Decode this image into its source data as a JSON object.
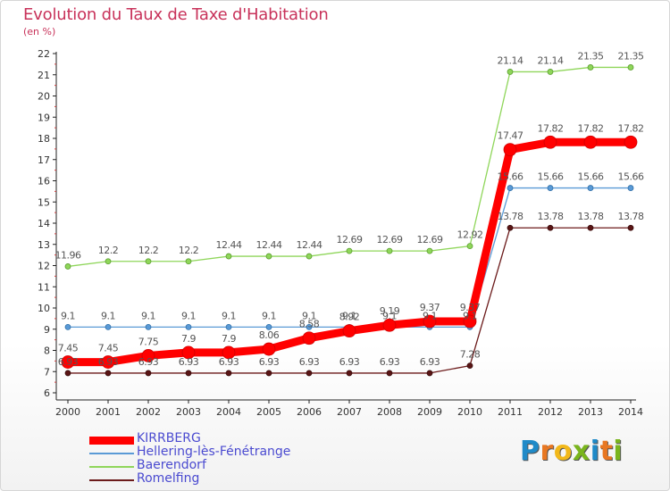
{
  "header": {
    "title": "Evolution du Taux de Taxe d'Habitation",
    "subtitle": "(en %)"
  },
  "logo": {
    "text": "Proxiti",
    "letters": [
      "P",
      "r",
      "o",
      "x",
      "i",
      "t",
      "i"
    ],
    "colors": [
      "#1f8ac8",
      "#e87722",
      "#f2b81a",
      "#7ab51d",
      "#1f8ac8",
      "#e87722",
      "#7ab51d"
    ]
  },
  "chart_data": {
    "type": "line",
    "title": "Evolution du Taux de Taxe d'Habitation",
    "subtitle": "(en %)",
    "categories": [
      "2000",
      "2001",
      "2002",
      "2003",
      "2004",
      "2005",
      "2006",
      "2007",
      "2008",
      "2009",
      "2010",
      "2011",
      "2012",
      "2013",
      "2014"
    ],
    "ylim": [
      6,
      22
    ],
    "yticks": [
      "6",
      "7",
      "8",
      "9",
      "10",
      "11",
      "12",
      "13",
      "14",
      "15",
      "16",
      "17",
      "18",
      "19",
      "20",
      "21",
      "22"
    ],
    "grid": false,
    "legend_position": "bottom-left",
    "series": [
      {
        "name": "Romelfing",
        "color": "#6b1a1a",
        "values": [
          6.93,
          6.93,
          6.93,
          6.93,
          6.93,
          6.93,
          6.93,
          6.93,
          6.93,
          6.93,
          7.28,
          13.78,
          13.78,
          13.78,
          13.78
        ],
        "labels": [
          "6.93",
          "6.93",
          "6.93",
          "6.93",
          "6.93",
          "6.93",
          "6.93",
          "6.93",
          "6.93",
          "6.93",
          "7.28",
          "13.78",
          "13.78",
          "13.78",
          "13.78"
        ]
      },
      {
        "name": "Baerendorf",
        "color": "#8fd65a",
        "values": [
          11.96,
          12.2,
          12.2,
          12.2,
          12.44,
          12.44,
          12.44,
          12.69,
          12.69,
          12.69,
          12.92,
          21.14,
          21.14,
          21.35,
          21.35
        ],
        "labels": [
          "11.96",
          "12.2",
          "12.2",
          "12.2",
          "12.44",
          "12.44",
          "12.44",
          "12.69",
          "12.69",
          "12.69",
          "12.92",
          "21.14",
          "21.14",
          "21.35",
          "21.35"
        ]
      },
      {
        "name": "Hellering-lès-Fénétrange",
        "color": "#5a9ad6",
        "values": [
          9.1,
          9.1,
          9.1,
          9.1,
          9.1,
          9.1,
          9.1,
          9.1,
          9.1,
          9.1,
          9.1,
          15.66,
          15.66,
          15.66,
          15.66
        ],
        "labels": [
          "9.1",
          "9.1",
          "9.1",
          "9.1",
          "9.1",
          "9.1",
          "9.1",
          "9.1",
          "9.1",
          "9.1",
          "9.1",
          "15.66",
          "15.66",
          "15.66",
          "15.66"
        ]
      },
      {
        "name": "KIRRBERG",
        "color": "#ff0000",
        "values": [
          7.45,
          7.45,
          7.75,
          7.9,
          7.9,
          8.06,
          8.58,
          8.92,
          9.19,
          9.37,
          9.37,
          17.47,
          17.82,
          17.82,
          17.82
        ],
        "labels": [
          "7.45",
          "7.45",
          "7.75",
          "7.9",
          "7.9",
          "8.06",
          "8.58",
          "8.92",
          "9.19",
          "9.37",
          "9.37",
          "17.47",
          "17.82",
          "17.82",
          "17.82"
        ]
      }
    ]
  }
}
